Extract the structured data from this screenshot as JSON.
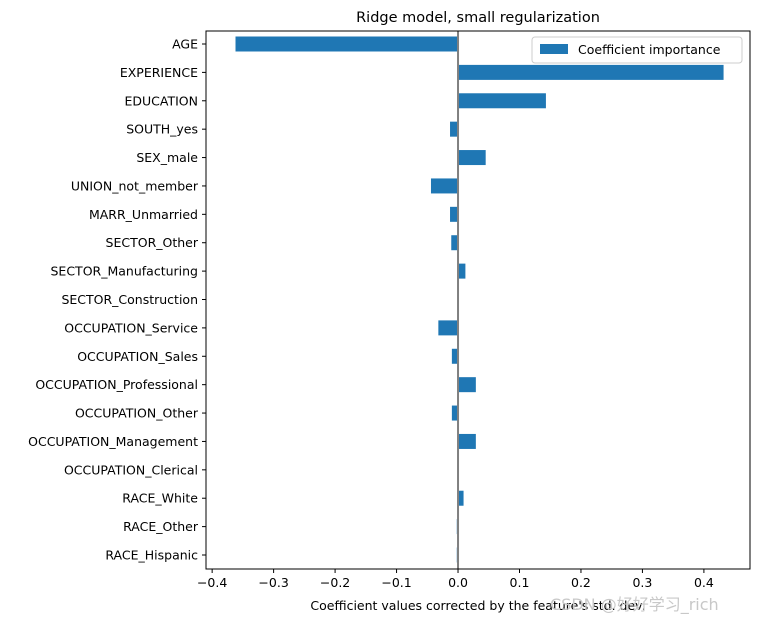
{
  "chart_data": {
    "type": "bar",
    "orientation": "horizontal",
    "title": "Ridge model, small regularization",
    "xlabel": "Coefficient values corrected by the feature's std. dev.",
    "ylabel": "",
    "xlim": [
      -0.41,
      0.475
    ],
    "x_ticks": [
      -0.4,
      -0.3,
      -0.2,
      -0.1,
      0.0,
      0.1,
      0.2,
      0.3,
      0.4
    ],
    "x_tick_labels": [
      "−0.4",
      "−0.3",
      "−0.2",
      "−0.1",
      "0.0",
      "0.1",
      "0.2",
      "0.3",
      "0.4"
    ],
    "reference_line_x": 0.0,
    "legend_position": "top-right",
    "grid": false,
    "categories": [
      "AGE",
      "EXPERIENCE",
      "EDUCATION",
      "SOUTH_yes",
      "SEX_male",
      "UNION_not_member",
      "MARR_Unmarried",
      "SECTOR_Other",
      "SECTOR_Manufacturing",
      "SECTOR_Construction",
      "OCCUPATION_Service",
      "OCCUPATION_Sales",
      "OCCUPATION_Professional",
      "OCCUPATION_Other",
      "OCCUPATION_Management",
      "OCCUPATION_Clerical",
      "RACE_White",
      "RACE_Other",
      "RACE_Hispanic"
    ],
    "series": [
      {
        "name": "Coefficient importance",
        "color": "#1f77b4",
        "values": [
          -0.362,
          0.432,
          0.143,
          -0.013,
          0.045,
          -0.044,
          -0.013,
          -0.011,
          0.012,
          0.001,
          -0.032,
          -0.01,
          0.029,
          -0.01,
          0.029,
          0.0,
          0.009,
          -0.002,
          -0.002
        ]
      }
    ]
  },
  "watermark": "CSDN @好好学习_rich"
}
